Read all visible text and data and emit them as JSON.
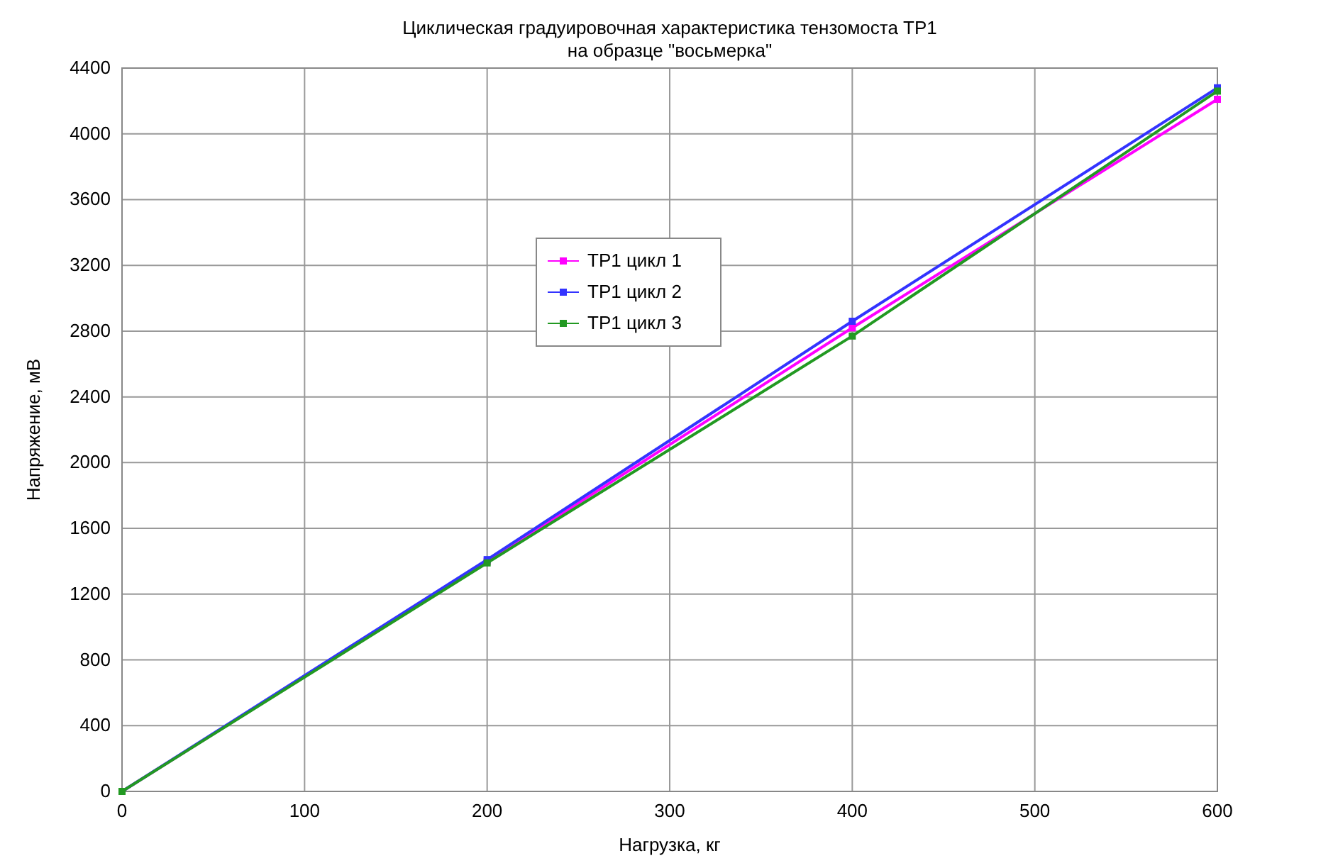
{
  "chart_data": {
    "type": "line",
    "title": "Циклическая градуировочная характеристика тензомоста TP1",
    "subtitle": "на образце \"восьмерка\"",
    "xlabel": "Нагрузка, кг",
    "ylabel": "Напряжение, мВ",
    "x": [
      0,
      200,
      400,
      600
    ],
    "series": [
      {
        "name": "TP1 цикл 1",
        "color": "#ff00ff",
        "values": [
          0,
          1400,
          2820,
          4210
        ]
      },
      {
        "name": "TP1 цикл 2",
        "color": "#3333ff",
        "values": [
          0,
          1410,
          2860,
          4280
        ]
      },
      {
        "name": "TP1 цикл 3",
        "color": "#229922",
        "values": [
          0,
          1390,
          2770,
          4260
        ]
      }
    ],
    "xlim": [
      0,
      600
    ],
    "xticks": [
      0,
      100,
      200,
      300,
      400,
      500,
      600
    ],
    "ylim": [
      0,
      4400
    ],
    "yticks": [
      0,
      400,
      800,
      1200,
      1600,
      2000,
      2400,
      2800,
      3200,
      3600,
      4000,
      4400
    ],
    "grid": true,
    "legend": "top",
    "marker": "square",
    "line_style": "solid"
  }
}
